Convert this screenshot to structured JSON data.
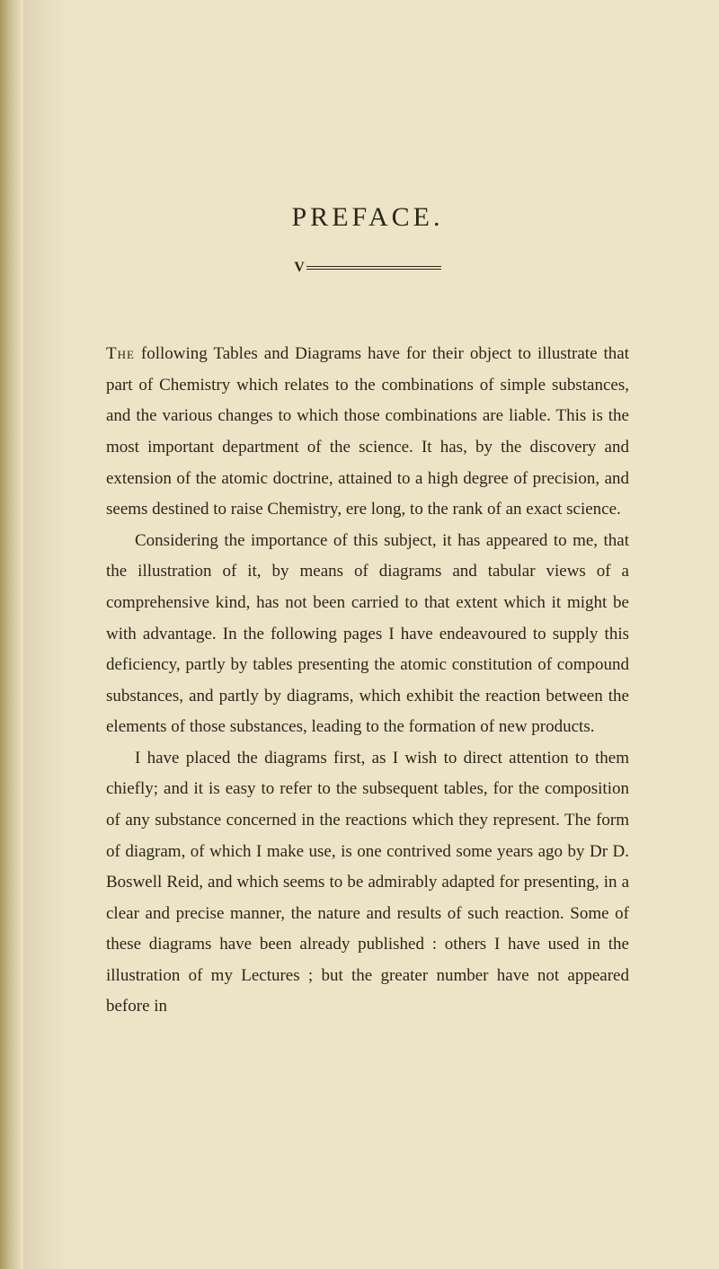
{
  "page": {
    "title": "PREFACE.",
    "background_color": "#ede4c8",
    "text_color": "#2b2618",
    "font_family": "Georgia, Times New Roman, serif",
    "title_fontsize": 30,
    "title_letterspacing": 4,
    "body_fontsize": 19,
    "body_lineheight": 1.82,
    "divider": {
      "prefix_glyph": "V",
      "line_width": 150,
      "line_color": "#2b2618",
      "line_gap": 2
    },
    "paragraphs": [
      {
        "first_word": "The",
        "rest": " following Tables and Diagrams have for their object to illustrate that part of Chemistry which relates to the combinations of simple substances, and the various changes to which those combinations are liable. This is the most important department of the science. It has, by the discovery and extension of the atomic doctrine, attained to a high degree of precision, and seems destined to raise Chemistry, ere long, to the rank of an exact science."
      },
      {
        "indent": true,
        "text": "Considering the importance of this subject, it has appeared to me, that the illustration of it, by means of diagrams and tabular views of a comprehensive kind, has not been carried to that extent which it might be with advantage. In the following pages I have endeavoured to supply this deficiency, partly by tables presenting the atomic constitution of compound substances, and partly by diagrams, which exhibit the reaction between the elements of those substances, leading to the formation of new products."
      },
      {
        "indent": true,
        "text": "I have placed the diagrams first, as I wish to direct attention to them chiefly; and it is easy to refer to the subsequent tables, for the composition of any substance concerned in the reactions which they represent. The form of diagram, of which I make use, is one contrived some years ago by Dr D. Boswell Reid, and which seems to be admirably adapted for presenting, in a clear and precise manner, the nature and results of such reaction. Some of these diagrams have been already published : others I have used in the illustration of my Lectures ; but the greater number have not appeared before in"
      }
    ],
    "binding_edge": {
      "width": 26,
      "gradient_start": "#a8975f",
      "gradient_mid": "#c9bc8e",
      "gradient_end": "#ede4c8"
    }
  }
}
